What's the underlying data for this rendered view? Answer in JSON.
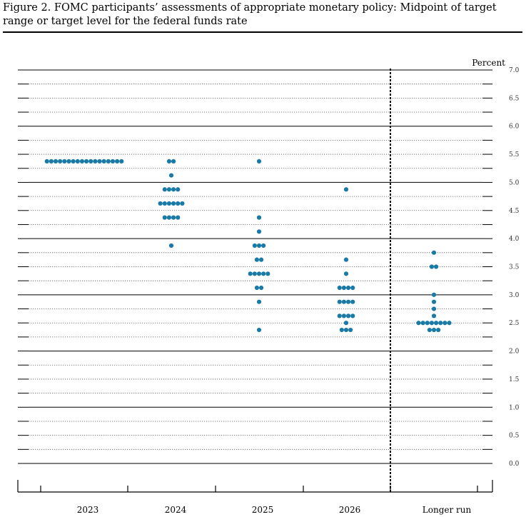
{
  "title": "Figure 2.  FOMC participants’ assessments of appropriate monetary policy:  Midpoint of target range or target level for the federal funds rate",
  "chart_data": {
    "type": "scatter",
    "title": "Figure 2.  FOMC participants’ assessments of appropriate monetary policy:  Midpoint of target range or target level for the federal funds rate",
    "ylabel": "Percent",
    "ylim": [
      0,
      7
    ],
    "yticks": [
      "0.0",
      "0.5",
      "1.0",
      "1.5",
      "2.0",
      "2.5",
      "3.0",
      "3.5",
      "4.0",
      "4.5",
      "5.0",
      "5.5",
      "6.0",
      "6.5",
      "7.0"
    ],
    "categories": [
      "2023",
      "2024",
      "2025",
      "2026",
      "Longer run"
    ],
    "dot_color": "#1a7aa6",
    "dots": [
      [
        {
          "value": 5.375,
          "count": 18
        }
      ],
      [
        {
          "value": 5.375,
          "count": 2
        },
        {
          "value": 5.125,
          "count": 1
        },
        {
          "value": 4.875,
          "count": 4
        },
        {
          "value": 4.625,
          "count": 6
        },
        {
          "value": 4.375,
          "count": 4
        },
        {
          "value": 3.875,
          "count": 1
        }
      ],
      [
        {
          "value": 5.375,
          "count": 1
        },
        {
          "value": 4.375,
          "count": 1
        },
        {
          "value": 4.125,
          "count": 1
        },
        {
          "value": 3.875,
          "count": 3
        },
        {
          "value": 3.625,
          "count": 2
        },
        {
          "value": 3.375,
          "count": 5
        },
        {
          "value": 3.125,
          "count": 2
        },
        {
          "value": 2.875,
          "count": 1
        },
        {
          "value": 2.375,
          "count": 1
        }
      ],
      [
        {
          "value": 4.875,
          "count": 1
        },
        {
          "value": 3.625,
          "count": 1
        },
        {
          "value": 3.375,
          "count": 1
        },
        {
          "value": 3.125,
          "count": 4
        },
        {
          "value": 2.875,
          "count": 4
        },
        {
          "value": 2.625,
          "count": 4
        },
        {
          "value": 2.5,
          "count": 1
        },
        {
          "value": 2.375,
          "count": 3
        }
      ],
      [
        {
          "value": 3.75,
          "count": 1
        },
        {
          "value": 3.5,
          "count": 2
        },
        {
          "value": 3.0,
          "count": 1
        },
        {
          "value": 2.875,
          "count": 1
        },
        {
          "value": 2.75,
          "count": 1
        },
        {
          "value": 2.625,
          "count": 1
        },
        {
          "value": 2.5,
          "count": 8
        },
        {
          "value": 2.375,
          "count": 3
        }
      ]
    ]
  }
}
